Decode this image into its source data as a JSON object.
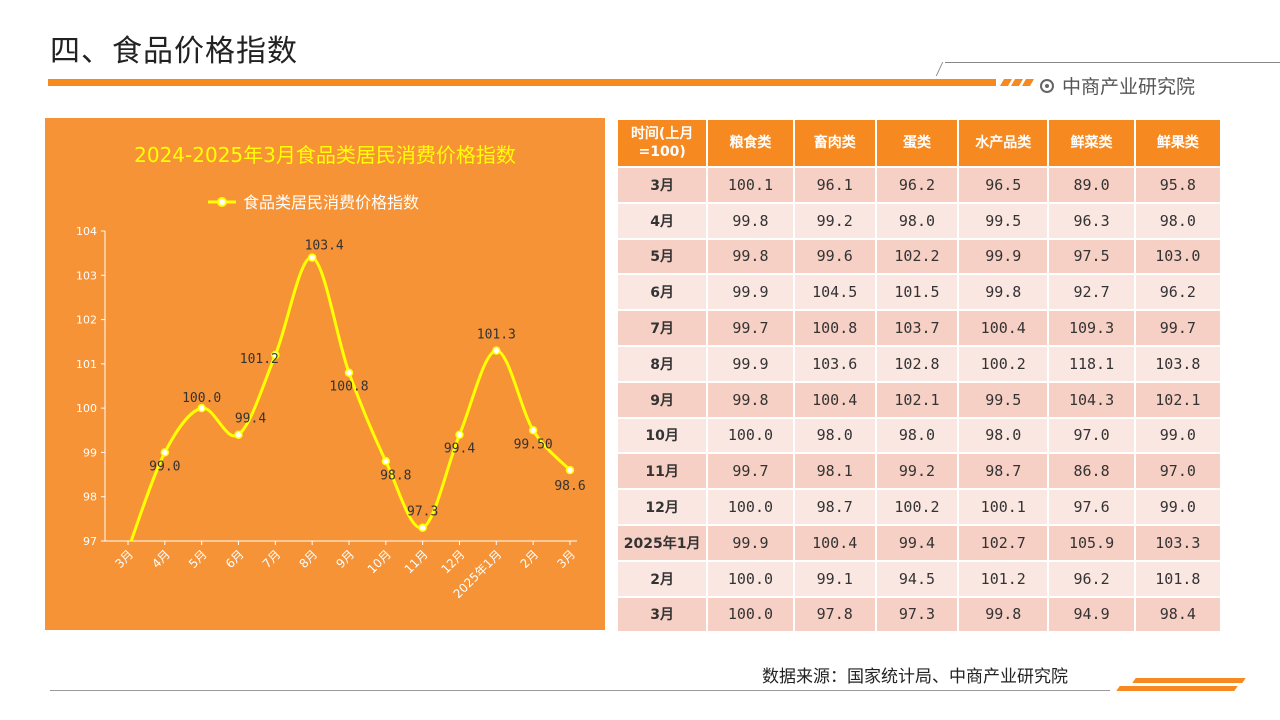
{
  "page": {
    "title": "四、食品价格指数",
    "brand": "中商产业研究院",
    "source": "数据来源：国家统计局、中商产业研究院"
  },
  "colors": {
    "accent": "#f6891f",
    "chart_bg": "#f69336",
    "line": "#ffff00",
    "row_odd": "#f7d0c5",
    "row_even": "#fbe7e2"
  },
  "chart_data": {
    "type": "line",
    "title": "2024-2025年3月食品类居民消费价格指数",
    "legend": "top-center",
    "series": [
      {
        "name": "食品类居民消费价格指数",
        "values": [
          96.8,
          99.0,
          100.0,
          99.4,
          101.2,
          103.4,
          100.8,
          98.8,
          97.3,
          99.4,
          101.3,
          99.5,
          98.6
        ],
        "labels": [
          "",
          "99.0",
          "100.0",
          "99.4",
          "101.2",
          "103.4",
          "100.8",
          "98.8",
          "97.3",
          "99.4",
          "101.3",
          "99.50",
          "98.6"
        ]
      }
    ],
    "categories": [
      "3月",
      "4月",
      "5月",
      "6月",
      "7月",
      "8月",
      "9月",
      "10月",
      "11月",
      "12月",
      "2025年1月",
      "2月",
      "3月"
    ],
    "y_ticks": [
      "97",
      "98",
      "99",
      "100",
      "101",
      "102",
      "103",
      "104"
    ],
    "ylim": [
      97,
      104
    ],
    "grid": false
  },
  "table": {
    "headers": [
      "时间(上月=100)",
      "粮食类",
      "畜肉类",
      "蛋类",
      "水产品类",
      "鲜菜类",
      "鲜果类"
    ],
    "rows": [
      [
        "3月",
        "100.1",
        "96.1",
        "96.2",
        "96.5",
        "89.0",
        "95.8"
      ],
      [
        "4月",
        "99.8",
        "99.2",
        "98.0",
        "99.5",
        "96.3",
        "98.0"
      ],
      [
        "5月",
        "99.8",
        "99.6",
        "102.2",
        "99.9",
        "97.5",
        "103.0"
      ],
      [
        "6月",
        "99.9",
        "104.5",
        "101.5",
        "99.8",
        "92.7",
        "96.2"
      ],
      [
        "7月",
        "99.7",
        "100.8",
        "103.7",
        "100.4",
        "109.3",
        "99.7"
      ],
      [
        "8月",
        "99.9",
        "103.6",
        "102.8",
        "100.2",
        "118.1",
        "103.8"
      ],
      [
        "9月",
        "99.8",
        "100.4",
        "102.1",
        "99.5",
        "104.3",
        "102.1"
      ],
      [
        "10月",
        "100.0",
        "98.0",
        "98.0",
        "98.0",
        "97.0",
        "99.0"
      ],
      [
        "11月",
        "99.7",
        "98.1",
        "99.2",
        "98.7",
        "86.8",
        "97.0"
      ],
      [
        "12月",
        "100.0",
        "98.7",
        "100.2",
        "100.1",
        "97.6",
        "99.0"
      ],
      [
        "2025年1月",
        "99.9",
        "100.4",
        "99.4",
        "102.7",
        "105.9",
        "103.3"
      ],
      [
        "2月",
        "100.0",
        "99.1",
        "94.5",
        "101.2",
        "96.2",
        "101.8"
      ],
      [
        "3月",
        "100.0",
        "97.8",
        "97.3",
        "99.8",
        "94.9",
        "98.4"
      ]
    ]
  }
}
